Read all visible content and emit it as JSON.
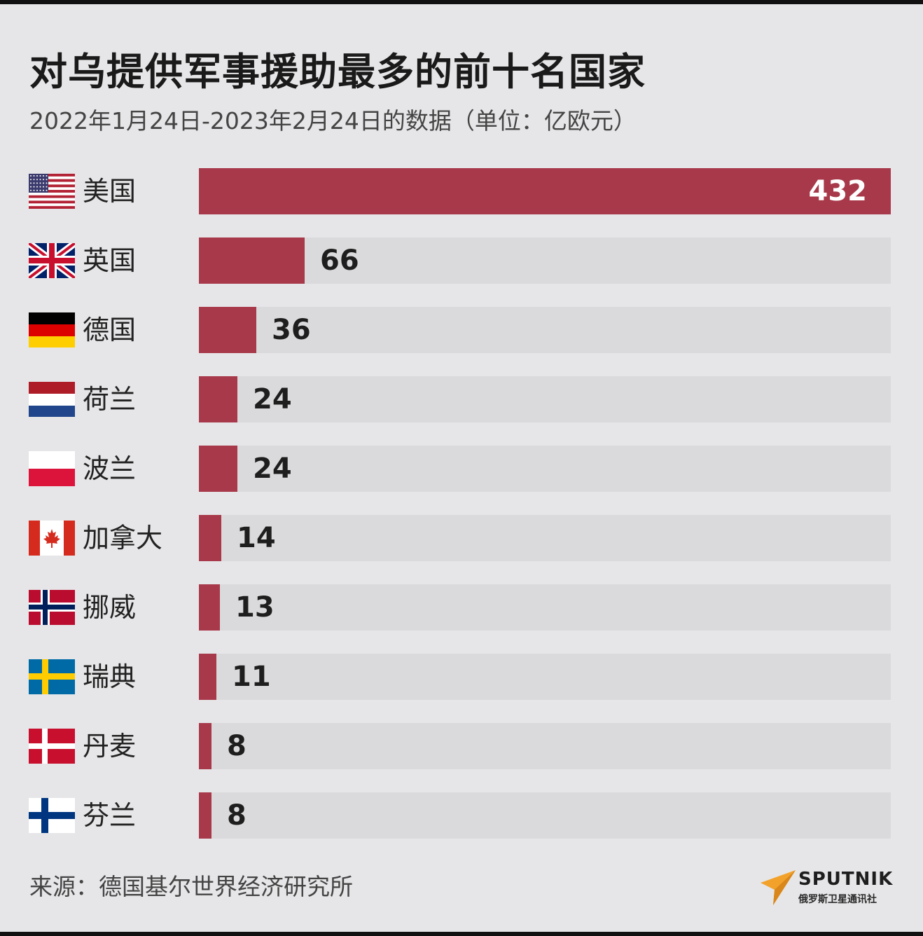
{
  "title": "对乌提供军事援助最多的前十名国家",
  "subtitle": "2022年1月24日-2023年2月24日的数据（单位：亿欧元）",
  "source": "来源：德国基尔世界经济研究所",
  "logo": {
    "brand": "SPUTNIK",
    "sub": "俄罗斯卫星通讯社"
  },
  "colors": {
    "bar": "#a8394a",
    "track": "#dadadc",
    "background": "#e6e6e8",
    "logo_accent": "#f2a22a"
  },
  "chart_data": {
    "type": "bar",
    "orientation": "horizontal",
    "categories": [
      "美国",
      "英国",
      "德国",
      "荷兰",
      "波兰",
      "加拿大",
      "挪威",
      "瑞典",
      "丹麦",
      "芬兰"
    ],
    "values": [
      432,
      66,
      36,
      24,
      24,
      14,
      13,
      11,
      8,
      8
    ],
    "value_labels": [
      "432",
      "66",
      "36",
      "24",
      "24",
      "14",
      "13",
      "11",
      "8",
      "8"
    ],
    "flags": [
      "us-flag-icon",
      "uk-flag-icon",
      "germany-flag-icon",
      "netherlands-flag-icon",
      "poland-flag-icon",
      "canada-flag-icon",
      "norway-flag-icon",
      "sweden-flag-icon",
      "denmark-flag-icon",
      "finland-flag-icon"
    ],
    "xlim": [
      0,
      432
    ],
    "grid": false
  }
}
